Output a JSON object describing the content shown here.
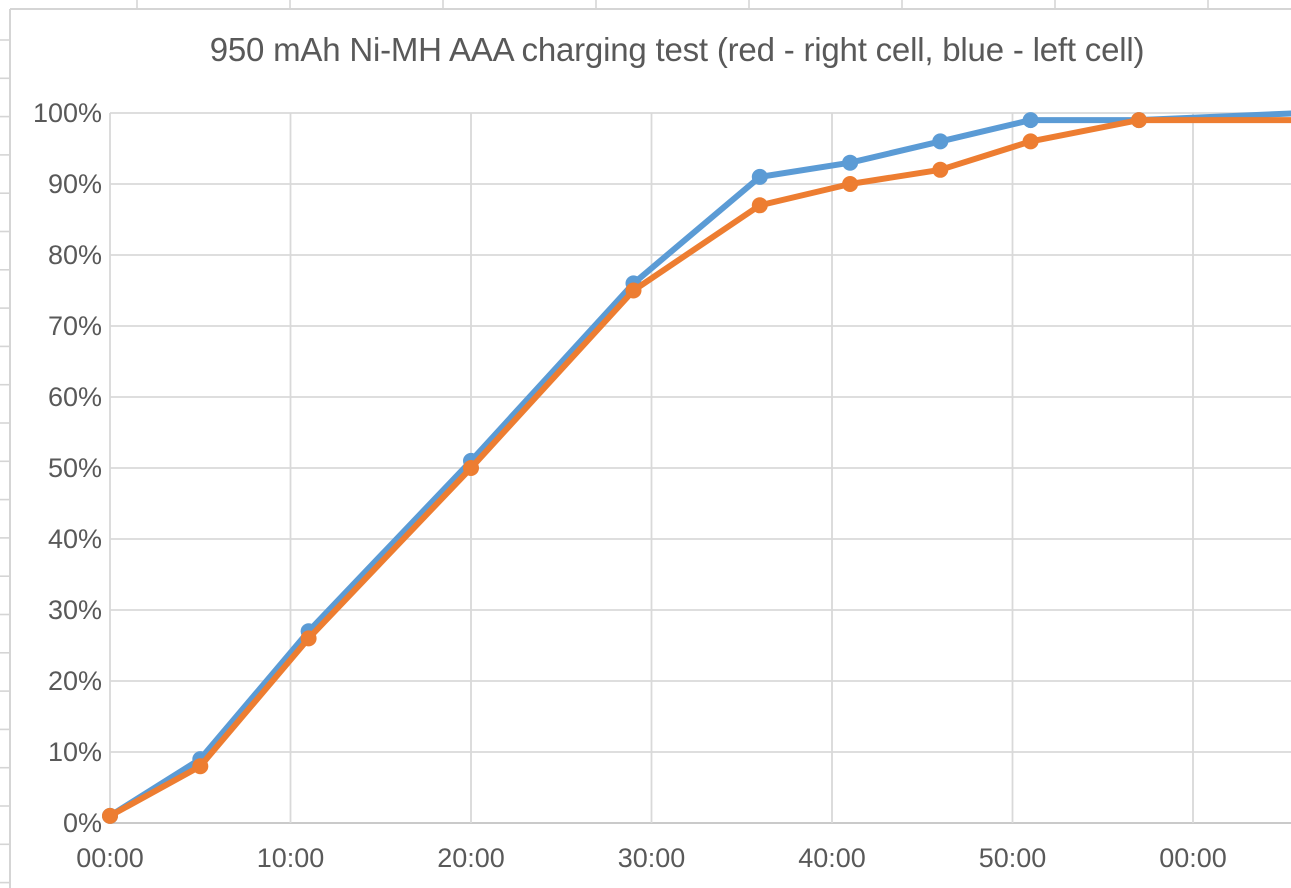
{
  "chart_data": {
    "type": "line",
    "title": "950 mAh Ni-MH AAA charging test (red - right cell, blue - left cell)",
    "x_axis": {
      "unit": "elapsed charging time (mm:ss)",
      "tick_labels": [
        "00:00",
        "10:00",
        "20:00",
        "30:00",
        "40:00",
        "50:00",
        "00:00"
      ],
      "tick_minutes": [
        0,
        10,
        20,
        30,
        40,
        50,
        60
      ],
      "range_minutes": [
        0,
        65.4
      ],
      "grid": true
    },
    "y_axis": {
      "unit": "charge percent",
      "tick_labels": [
        "0%",
        "10%",
        "20%",
        "30%",
        "40%",
        "50%",
        "60%",
        "70%",
        "80%",
        "90%",
        "100%"
      ],
      "min": 0,
      "max": 100,
      "step": 10,
      "grid": true
    },
    "legend": {
      "position": "none",
      "note": "series identified in chart title"
    },
    "marker": "circle",
    "series": [
      {
        "name": "left cell",
        "color_name": "blue",
        "color": "#5B9BD5",
        "points_min_pct": [
          [
            0,
            1
          ],
          [
            5,
            9
          ],
          [
            11,
            27
          ],
          [
            20,
            51
          ],
          [
            29,
            76
          ],
          [
            36,
            91
          ],
          [
            41,
            93
          ],
          [
            46,
            96
          ],
          [
            51,
            99
          ],
          [
            57,
            99
          ]
        ],
        "tail_point_min_pct": [
          66,
          100
        ],
        "tail_cut_off_at_right_edge": true
      },
      {
        "name": "right cell",
        "color_name": "red",
        "color": "#ED7D31",
        "points_min_pct": [
          [
            0,
            1
          ],
          [
            5,
            8
          ],
          [
            11,
            26
          ],
          [
            20,
            50
          ],
          [
            29,
            75
          ],
          [
            36,
            87
          ],
          [
            41,
            90
          ],
          [
            46,
            92
          ],
          [
            51,
            96
          ],
          [
            57,
            99
          ]
        ],
        "tail_point_min_pct": [
          66,
          99
        ],
        "tail_cut_off_at_right_edge": true
      }
    ]
  },
  "styles": {
    "series_blue": "#5B9BD5",
    "series_orange": "#ED7D31",
    "gridline": "#D9D9D9",
    "axis_line": "#C2C2C2",
    "text": "#595959",
    "chart_border": "#D5D5D5",
    "background": "#FFFFFF"
  }
}
